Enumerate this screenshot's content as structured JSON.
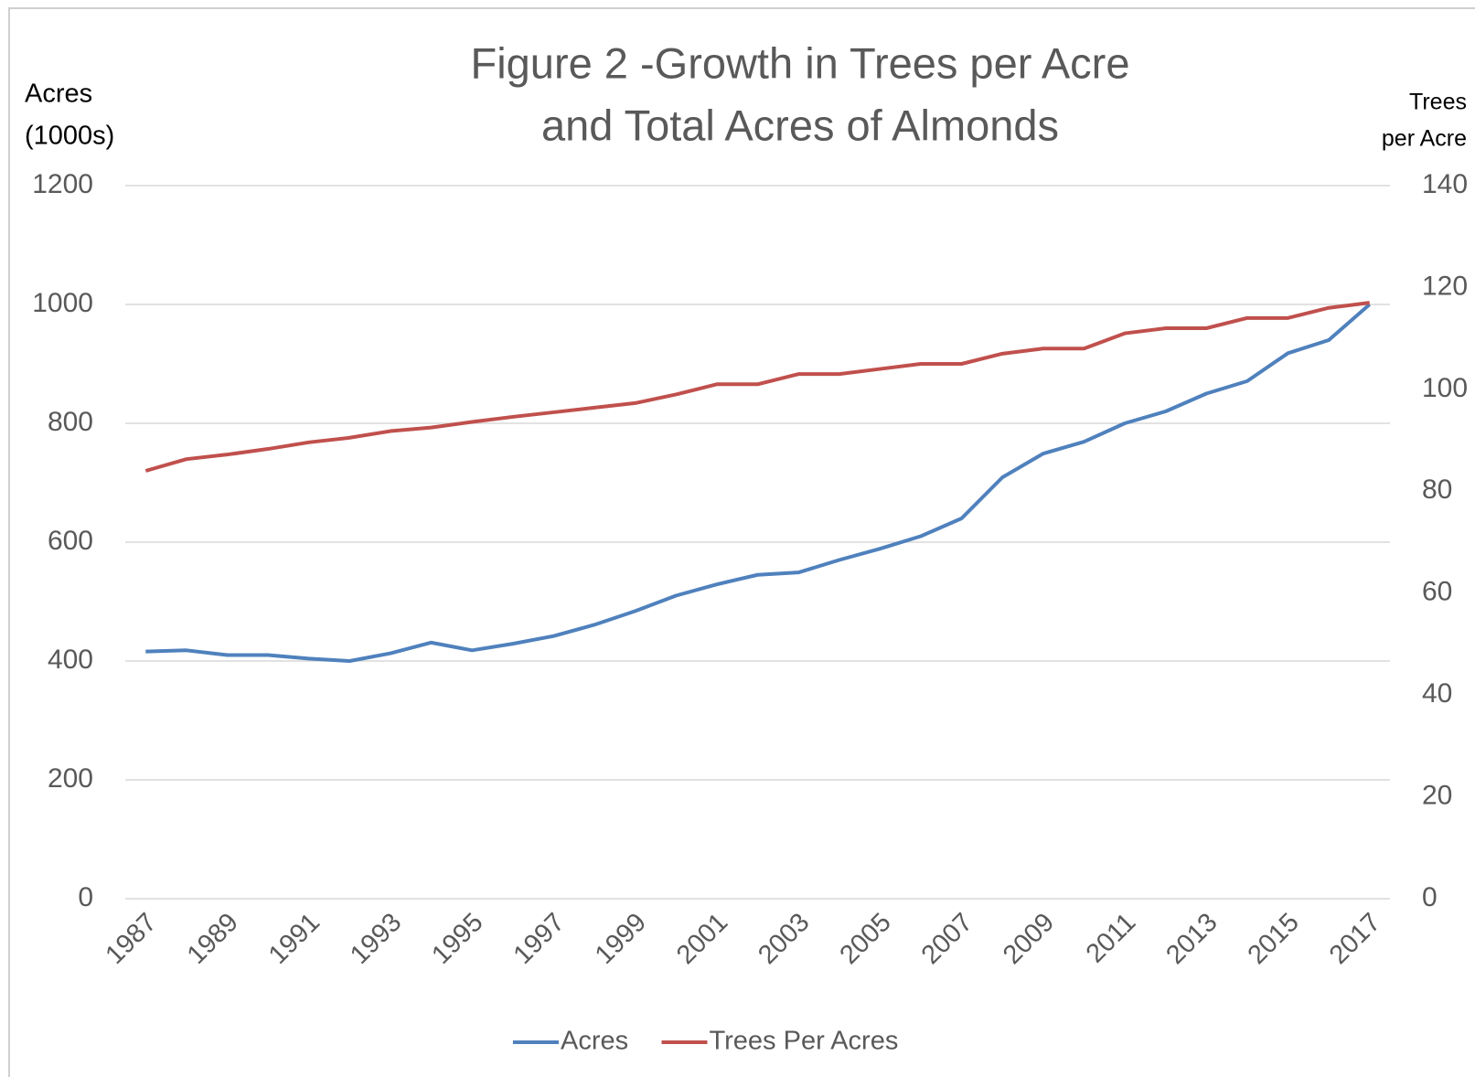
{
  "chart_data": {
    "type": "line",
    "title": [
      "Figure 2  -Growth in Trees per Acre",
      "and Total Acres of Almonds"
    ],
    "y_label": [
      "Acres",
      "(1000s)"
    ],
    "y2_label": [
      "Trees",
      "per Acre"
    ],
    "x": [
      1987,
      1988,
      1989,
      1990,
      1991,
      1992,
      1993,
      1994,
      1995,
      1996,
      1997,
      1998,
      1999,
      2000,
      2001,
      2002,
      2003,
      2004,
      2005,
      2006,
      2007,
      2008,
      2009,
      2010,
      2011,
      2012,
      2013,
      2014,
      2015,
      2016,
      2017
    ],
    "xlim": [
      1986.5,
      2017.5
    ],
    "xticks": [
      1987,
      1989,
      1991,
      1993,
      1995,
      1997,
      1999,
      2001,
      2003,
      2005,
      2007,
      2009,
      2011,
      2013,
      2015,
      2017
    ],
    "ylim": [
      0,
      1200
    ],
    "yticks": [
      0,
      200,
      400,
      600,
      800,
      1000,
      1200
    ],
    "y2lim": [
      0,
      140
    ],
    "y2ticks": [
      0,
      20,
      40,
      60,
      80,
      100,
      120,
      140
    ],
    "grid": true,
    "legend": "bottom",
    "series": [
      {
        "name": "Acres",
        "color": "#4f81bd",
        "values": [
          416,
          418,
          410,
          410,
          404,
          400,
          413,
          431,
          418,
          429,
          442,
          461,
          484,
          510,
          529,
          545,
          549,
          570,
          589,
          610,
          640,
          709,
          749,
          769,
          800,
          820,
          850,
          871,
          918,
          940,
          1000
        ]
      },
      {
        "name": "Trees Per Acres",
        "color": "#c0504d",
        "axis": "y2",
        "values": [
          84,
          86.3,
          87.2,
          88.3,
          89.6,
          90.5,
          91.8,
          92.5,
          93.6,
          94.6,
          95.5,
          96.4,
          97.3,
          99,
          101,
          101,
          103,
          103,
          104,
          105,
          105,
          107,
          108,
          108,
          111,
          112,
          112,
          114,
          114,
          116,
          117
        ]
      }
    ]
  }
}
